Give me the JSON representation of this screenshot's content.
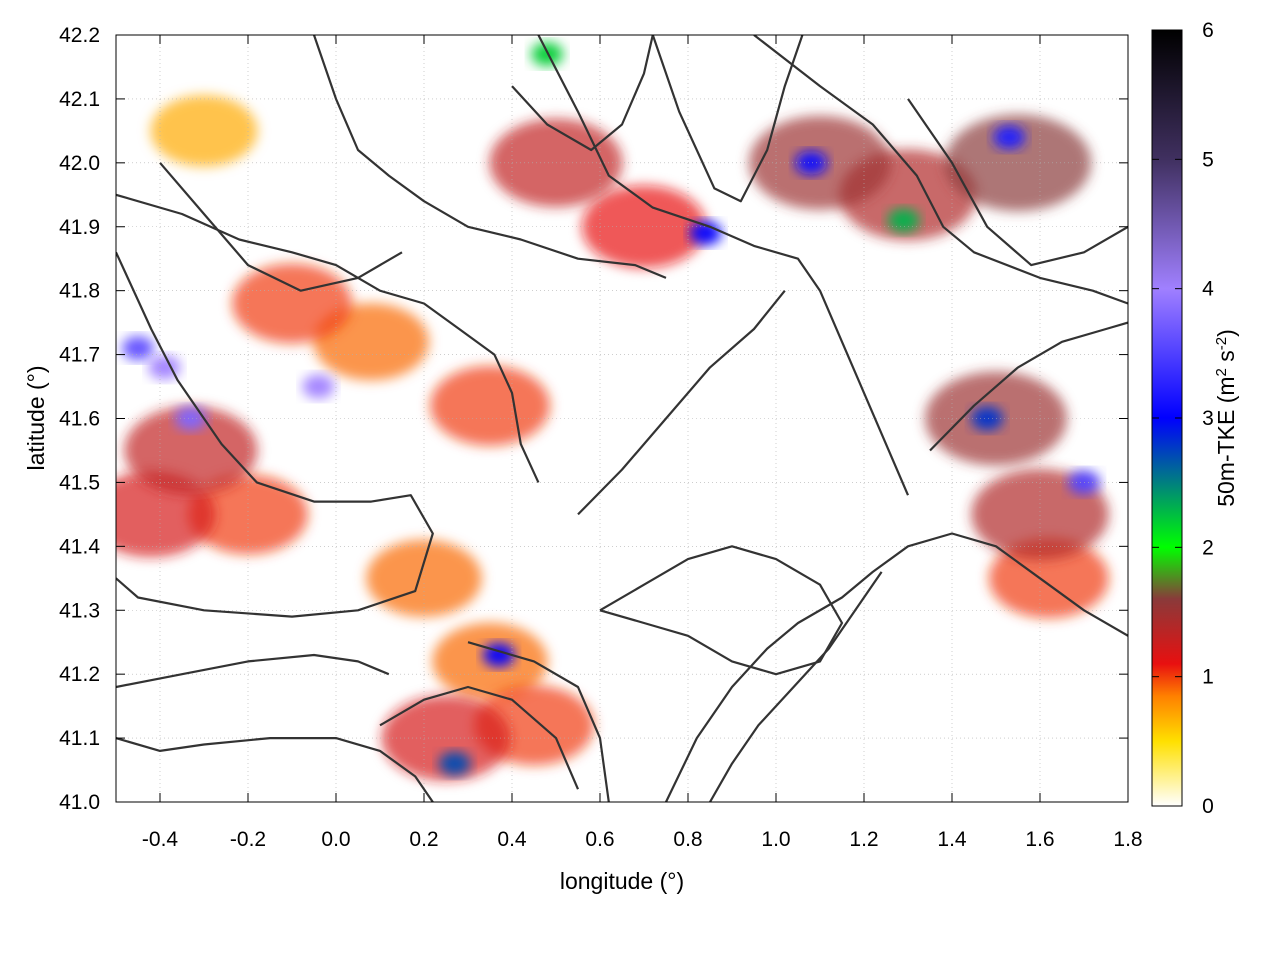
{
  "chart_data": {
    "type": "heatmap",
    "title": "",
    "xlabel": "longitude (°)",
    "ylabel": "latitude (°)",
    "xlim": [
      -0.5,
      1.8
    ],
    "ylim": [
      41.0,
      42.2
    ],
    "xticks": [
      -0.4,
      -0.2,
      0.0,
      0.2,
      0.4,
      0.6,
      0.8,
      1.0,
      1.2,
      1.4,
      1.6,
      1.8
    ],
    "xtick_labels": [
      "-0.4",
      "-0.2",
      "0.0",
      "0.2",
      "0.4",
      "0.6",
      "0.8",
      "1.0",
      "1.2",
      "1.4",
      "1.6",
      "1.8"
    ],
    "yticks": [
      41.0,
      41.1,
      41.2,
      41.3,
      41.4,
      41.5,
      41.6,
      41.7,
      41.8,
      41.9,
      42.0,
      42.1,
      42.2
    ],
    "ytick_labels": [
      "41.0",
      "41.1",
      "41.2",
      "41.3",
      "41.4",
      "41.5",
      "41.6",
      "41.7",
      "41.8",
      "41.9",
      "42.0",
      "42.1",
      "42.2"
    ],
    "grid": true,
    "colorbar": {
      "label_main": "50m-TKE (m",
      "label_sup1": "2",
      "label_mid": " s",
      "label_sup2": "-2",
      "label_end": ")",
      "range": [
        0,
        6
      ],
      "ticks": [
        0,
        1,
        2,
        3,
        4,
        5,
        6
      ],
      "tick_labels": [
        "0",
        "1",
        "2",
        "3",
        "4",
        "5",
        "6"
      ],
      "colormap": [
        {
          "value": 0.0,
          "color": "#ffffff"
        },
        {
          "value": 0.5,
          "color": "#ffe000"
        },
        {
          "value": 0.85,
          "color": "#ff8000"
        },
        {
          "value": 1.1,
          "color": "#e81010"
        },
        {
          "value": 1.6,
          "color": "#8a3a3a"
        },
        {
          "value": 2.0,
          "color": "#00ff00"
        },
        {
          "value": 3.0,
          "color": "#0000ff"
        },
        {
          "value": 4.0,
          "color": "#a080ff"
        },
        {
          "value": 5.0,
          "color": "#403060"
        },
        {
          "value": 6.0,
          "color": "#000000"
        }
      ]
    },
    "hotspots": [
      {
        "lon": -0.33,
        "lat": 41.55,
        "value": 1.3
      },
      {
        "lon": -0.42,
        "lat": 41.45,
        "value": 1.2
      },
      {
        "lon": -0.2,
        "lat": 41.45,
        "value": 1.0
      },
      {
        "lon": -0.1,
        "lat": 41.78,
        "value": 1.0
      },
      {
        "lon": 0.08,
        "lat": 41.72,
        "value": 0.9
      },
      {
        "lon": 0.35,
        "lat": 41.62,
        "value": 1.0
      },
      {
        "lon": 0.25,
        "lat": 41.1,
        "value": 1.2
      },
      {
        "lon": 0.45,
        "lat": 41.12,
        "value": 1.0
      },
      {
        "lon": 0.5,
        "lat": 42.0,
        "value": 1.3
      },
      {
        "lon": 0.7,
        "lat": 41.9,
        "value": 1.1
      },
      {
        "lon": 1.1,
        "lat": 42.0,
        "value": 1.5
      },
      {
        "lon": 1.3,
        "lat": 41.95,
        "value": 1.4
      },
      {
        "lon": 1.55,
        "lat": 42.0,
        "value": 1.6
      },
      {
        "lon": 1.5,
        "lat": 41.6,
        "value": 1.5
      },
      {
        "lon": 1.6,
        "lat": 41.45,
        "value": 1.4
      },
      {
        "lon": 1.62,
        "lat": 41.35,
        "value": 1.0
      },
      {
        "lon": 0.2,
        "lat": 41.35,
        "value": 0.9
      },
      {
        "lon": -0.3,
        "lat": 42.05,
        "value": 0.7
      },
      {
        "lon": 0.35,
        "lat": 41.22,
        "value": 0.9
      },
      {
        "lon": -0.45,
        "lat": 41.71,
        "value": 3.6
      },
      {
        "lon": -0.39,
        "lat": 41.68,
        "value": 4.0
      },
      {
        "lon": -0.33,
        "lat": 41.6,
        "value": 3.8
      },
      {
        "lon": -0.04,
        "lat": 41.65,
        "value": 4.0
      },
      {
        "lon": 0.37,
        "lat": 41.23,
        "value": 3.0
      },
      {
        "lon": 0.27,
        "lat": 41.06,
        "value": 2.7
      },
      {
        "lon": 1.08,
        "lat": 42.0,
        "value": 3.1
      },
      {
        "lon": 1.53,
        "lat": 42.04,
        "value": 3.2
      },
      {
        "lon": 1.29,
        "lat": 41.91,
        "value": 2.3
      },
      {
        "lon": 1.48,
        "lat": 41.6,
        "value": 2.8
      },
      {
        "lon": 1.7,
        "lat": 41.5,
        "value": 3.5
      },
      {
        "lon": 0.84,
        "lat": 41.89,
        "value": 3.0
      },
      {
        "lon": 0.48,
        "lat": 42.17,
        "value": 2.2
      }
    ],
    "contours": [
      [
        [
          -0.5,
          41.86
        ],
        [
          -0.42,
          41.74
        ],
        [
          -0.36,
          41.66
        ],
        [
          -0.26,
          41.56
        ],
        [
          -0.18,
          41.5
        ],
        [
          -0.05,
          41.47
        ],
        [
          0.08,
          41.47
        ],
        [
          0.17,
          41.48
        ],
        [
          0.22,
          41.42
        ],
        [
          0.18,
          41.33
        ],
        [
          0.05,
          41.3
        ],
        [
          -0.1,
          41.29
        ],
        [
          -0.3,
          41.3
        ],
        [
          -0.45,
          41.32
        ],
        [
          -0.5,
          41.35
        ]
      ],
      [
        [
          -0.5,
          41.95
        ],
        [
          -0.35,
          41.92
        ],
        [
          -0.22,
          41.88
        ],
        [
          -0.1,
          41.86
        ],
        [
          0.0,
          41.84
        ],
        [
          0.1,
          41.8
        ],
        [
          0.2,
          41.78
        ],
        [
          0.28,
          41.74
        ],
        [
          0.36,
          41.7
        ],
        [
          0.4,
          41.64
        ],
        [
          0.42,
          41.56
        ],
        [
          0.46,
          41.5
        ]
      ],
      [
        [
          -0.05,
          42.2
        ],
        [
          0.0,
          42.1
        ],
        [
          0.05,
          42.02
        ],
        [
          0.12,
          41.98
        ],
        [
          0.2,
          41.94
        ],
        [
          0.3,
          41.9
        ],
        [
          0.42,
          41.88
        ],
        [
          0.55,
          41.85
        ],
        [
          0.68,
          41.84
        ],
        [
          0.75,
          41.82
        ]
      ],
      [
        [
          0.46,
          42.2
        ],
        [
          0.55,
          42.08
        ],
        [
          0.62,
          41.98
        ],
        [
          0.72,
          41.93
        ],
        [
          0.85,
          41.9
        ],
        [
          0.95,
          41.87
        ],
        [
          1.05,
          41.85
        ],
        [
          1.1,
          41.8
        ],
        [
          1.15,
          41.72
        ],
        [
          1.2,
          41.64
        ],
        [
          1.25,
          41.56
        ],
        [
          1.3,
          41.48
        ]
      ],
      [
        [
          0.72,
          42.2
        ],
        [
          0.78,
          42.08
        ],
        [
          0.86,
          41.96
        ],
        [
          0.92,
          41.94
        ],
        [
          0.98,
          42.02
        ],
        [
          1.02,
          42.12
        ],
        [
          1.06,
          42.2
        ]
      ],
      [
        [
          0.95,
          42.2
        ],
        [
          1.1,
          42.12
        ],
        [
          1.22,
          42.06
        ],
        [
          1.32,
          41.98
        ],
        [
          1.38,
          41.9
        ],
        [
          1.45,
          41.86
        ],
        [
          1.6,
          41.82
        ],
        [
          1.72,
          41.8
        ],
        [
          1.8,
          41.78
        ]
      ],
      [
        [
          0.3,
          41.25
        ],
        [
          0.45,
          41.22
        ],
        [
          0.55,
          41.18
        ],
        [
          0.6,
          41.1
        ],
        [
          0.62,
          41.0
        ]
      ],
      [
        [
          0.1,
          41.12
        ],
        [
          0.2,
          41.16
        ],
        [
          0.3,
          41.18
        ],
        [
          0.4,
          41.16
        ],
        [
          0.5,
          41.1
        ],
        [
          0.55,
          41.02
        ]
      ],
      [
        [
          0.75,
          41.0
        ],
        [
          0.82,
          41.1
        ],
        [
          0.9,
          41.18
        ],
        [
          0.98,
          41.24
        ],
        [
          1.05,
          41.28
        ],
        [
          1.15,
          41.32
        ],
        [
          1.22,
          41.36
        ],
        [
          1.3,
          41.4
        ],
        [
          1.4,
          41.42
        ],
        [
          1.5,
          41.4
        ],
        [
          1.6,
          41.35
        ],
        [
          1.7,
          41.3
        ],
        [
          1.8,
          41.26
        ]
      ],
      [
        [
          0.85,
          41.0
        ],
        [
          0.9,
          41.06
        ],
        [
          0.96,
          41.12
        ],
        [
          1.04,
          41.18
        ],
        [
          1.12,
          41.24
        ],
        [
          1.18,
          41.3
        ],
        [
          1.24,
          41.36
        ]
      ],
      [
        [
          0.6,
          41.3
        ],
        [
          0.7,
          41.34
        ],
        [
          0.8,
          41.38
        ],
        [
          0.9,
          41.4
        ],
        [
          1.0,
          41.38
        ],
        [
          1.1,
          41.34
        ],
        [
          1.15,
          41.28
        ],
        [
          1.1,
          41.22
        ],
        [
          1.0,
          41.2
        ],
        [
          0.9,
          41.22
        ],
        [
          0.8,
          41.26
        ],
        [
          0.7,
          41.28
        ],
        [
          0.6,
          41.3
        ]
      ],
      [
        [
          0.55,
          41.45
        ],
        [
          0.65,
          41.52
        ],
        [
          0.75,
          41.6
        ],
        [
          0.85,
          41.68
        ],
        [
          0.95,
          41.74
        ],
        [
          1.02,
          41.8
        ]
      ],
      [
        [
          -0.5,
          41.1
        ],
        [
          -0.4,
          41.08
        ],
        [
          -0.3,
          41.09
        ],
        [
          -0.15,
          41.1
        ],
        [
          0.0,
          41.1
        ],
        [
          0.1,
          41.08
        ],
        [
          0.18,
          41.04
        ],
        [
          0.22,
          41.0
        ]
      ],
      [
        [
          -0.5,
          41.18
        ],
        [
          -0.35,
          41.2
        ],
        [
          -0.2,
          41.22
        ],
        [
          -0.05,
          41.23
        ],
        [
          0.05,
          41.22
        ],
        [
          0.12,
          41.2
        ]
      ],
      [
        [
          1.3,
          42.1
        ],
        [
          1.4,
          42.0
        ],
        [
          1.48,
          41.9
        ],
        [
          1.58,
          41.84
        ],
        [
          1.7,
          41.86
        ],
        [
          1.8,
          41.9
        ]
      ],
      [
        [
          1.35,
          41.55
        ],
        [
          1.45,
          41.62
        ],
        [
          1.55,
          41.68
        ],
        [
          1.65,
          41.72
        ],
        [
          1.75,
          41.74
        ],
        [
          1.8,
          41.75
        ]
      ],
      [
        [
          -0.4,
          42.0
        ],
        [
          -0.3,
          41.92
        ],
        [
          -0.2,
          41.84
        ],
        [
          -0.08,
          41.8
        ],
        [
          0.05,
          41.82
        ],
        [
          0.15,
          41.86
        ]
      ],
      [
        [
          0.4,
          42.12
        ],
        [
          0.48,
          42.06
        ],
        [
          0.58,
          42.02
        ],
        [
          0.65,
          42.06
        ],
        [
          0.7,
          42.14
        ],
        [
          0.72,
          42.2
        ]
      ]
    ]
  }
}
